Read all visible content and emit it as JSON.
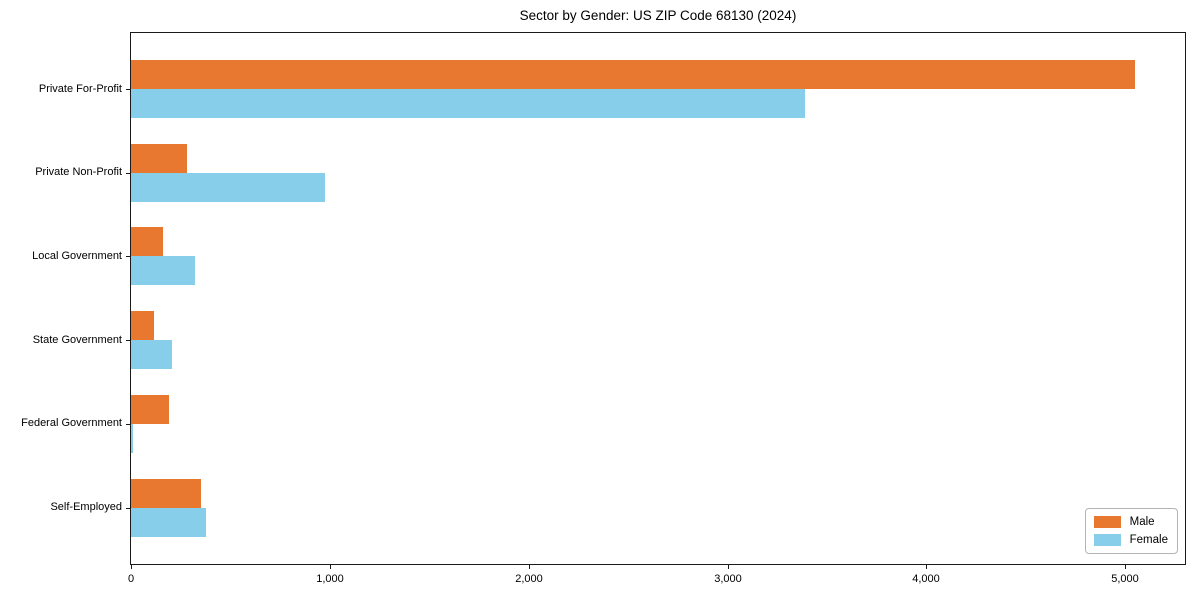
{
  "chart_data": {
    "type": "bar",
    "orientation": "horizontal",
    "title": "Sector by Gender: US ZIP Code 68130 (2024)",
    "categories": [
      "Private For-Profit",
      "Private Non-Profit",
      "Local Government",
      "State Government",
      "Federal Government",
      "Self-Employed"
    ],
    "series": [
      {
        "name": "Male",
        "color": "#e8772f",
        "values": [
          5050,
          280,
          160,
          115,
          190,
          350
        ]
      },
      {
        "name": "Female",
        "color": "#87ceeb",
        "values": [
          3390,
          975,
          320,
          205,
          10,
          375
        ]
      }
    ],
    "xlabel": "",
    "ylabel": "",
    "xlim": [
      0,
      5300
    ],
    "xticks": [
      0,
      1000,
      2000,
      3000,
      4000,
      5000
    ],
    "xtick_labels": [
      "0",
      "1,000",
      "2,000",
      "3,000",
      "4,000",
      "5,000"
    ],
    "grid": false,
    "legend_position": "lower-right",
    "axis_color": "#1a1a1a",
    "background": "#ffffff"
  }
}
